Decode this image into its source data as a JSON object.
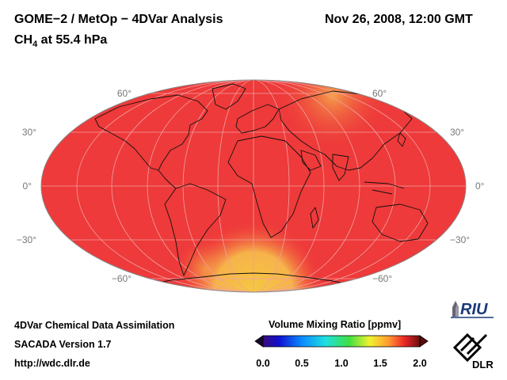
{
  "header": {
    "title": "GOME−2 / MetOp − 4DVar Analysis",
    "subtitle_prefix": "CH",
    "subtitle_sub": "4",
    "subtitle_suffix": " at 55.4 hPa",
    "datetime": "Nov 26, 2008, 12:00 GMT"
  },
  "map": {
    "projection": "Mollweide",
    "latitude_labels_left": [
      "60°",
      "30°",
      "0°",
      "−30°",
      "−60°"
    ],
    "latitude_labels_right": [
      "60°",
      "30°",
      "0°",
      "−30°",
      "−60°"
    ],
    "field_color": "#ee3a3a"
  },
  "footer": {
    "line1": "4DVar Chemical Data Assimilation",
    "line2": "SACADA Version 1.7",
    "line3": "http://wdc.dlr.de"
  },
  "colorbar": {
    "title": "Volume Mixing Ratio [ppmv]",
    "ticks": [
      "0.0",
      "0.5",
      "1.0",
      "1.5",
      "2.0"
    ],
    "min": 0.0,
    "max": 2.0
  },
  "logos": {
    "riu": "RIU",
    "dlr": "DLR"
  }
}
